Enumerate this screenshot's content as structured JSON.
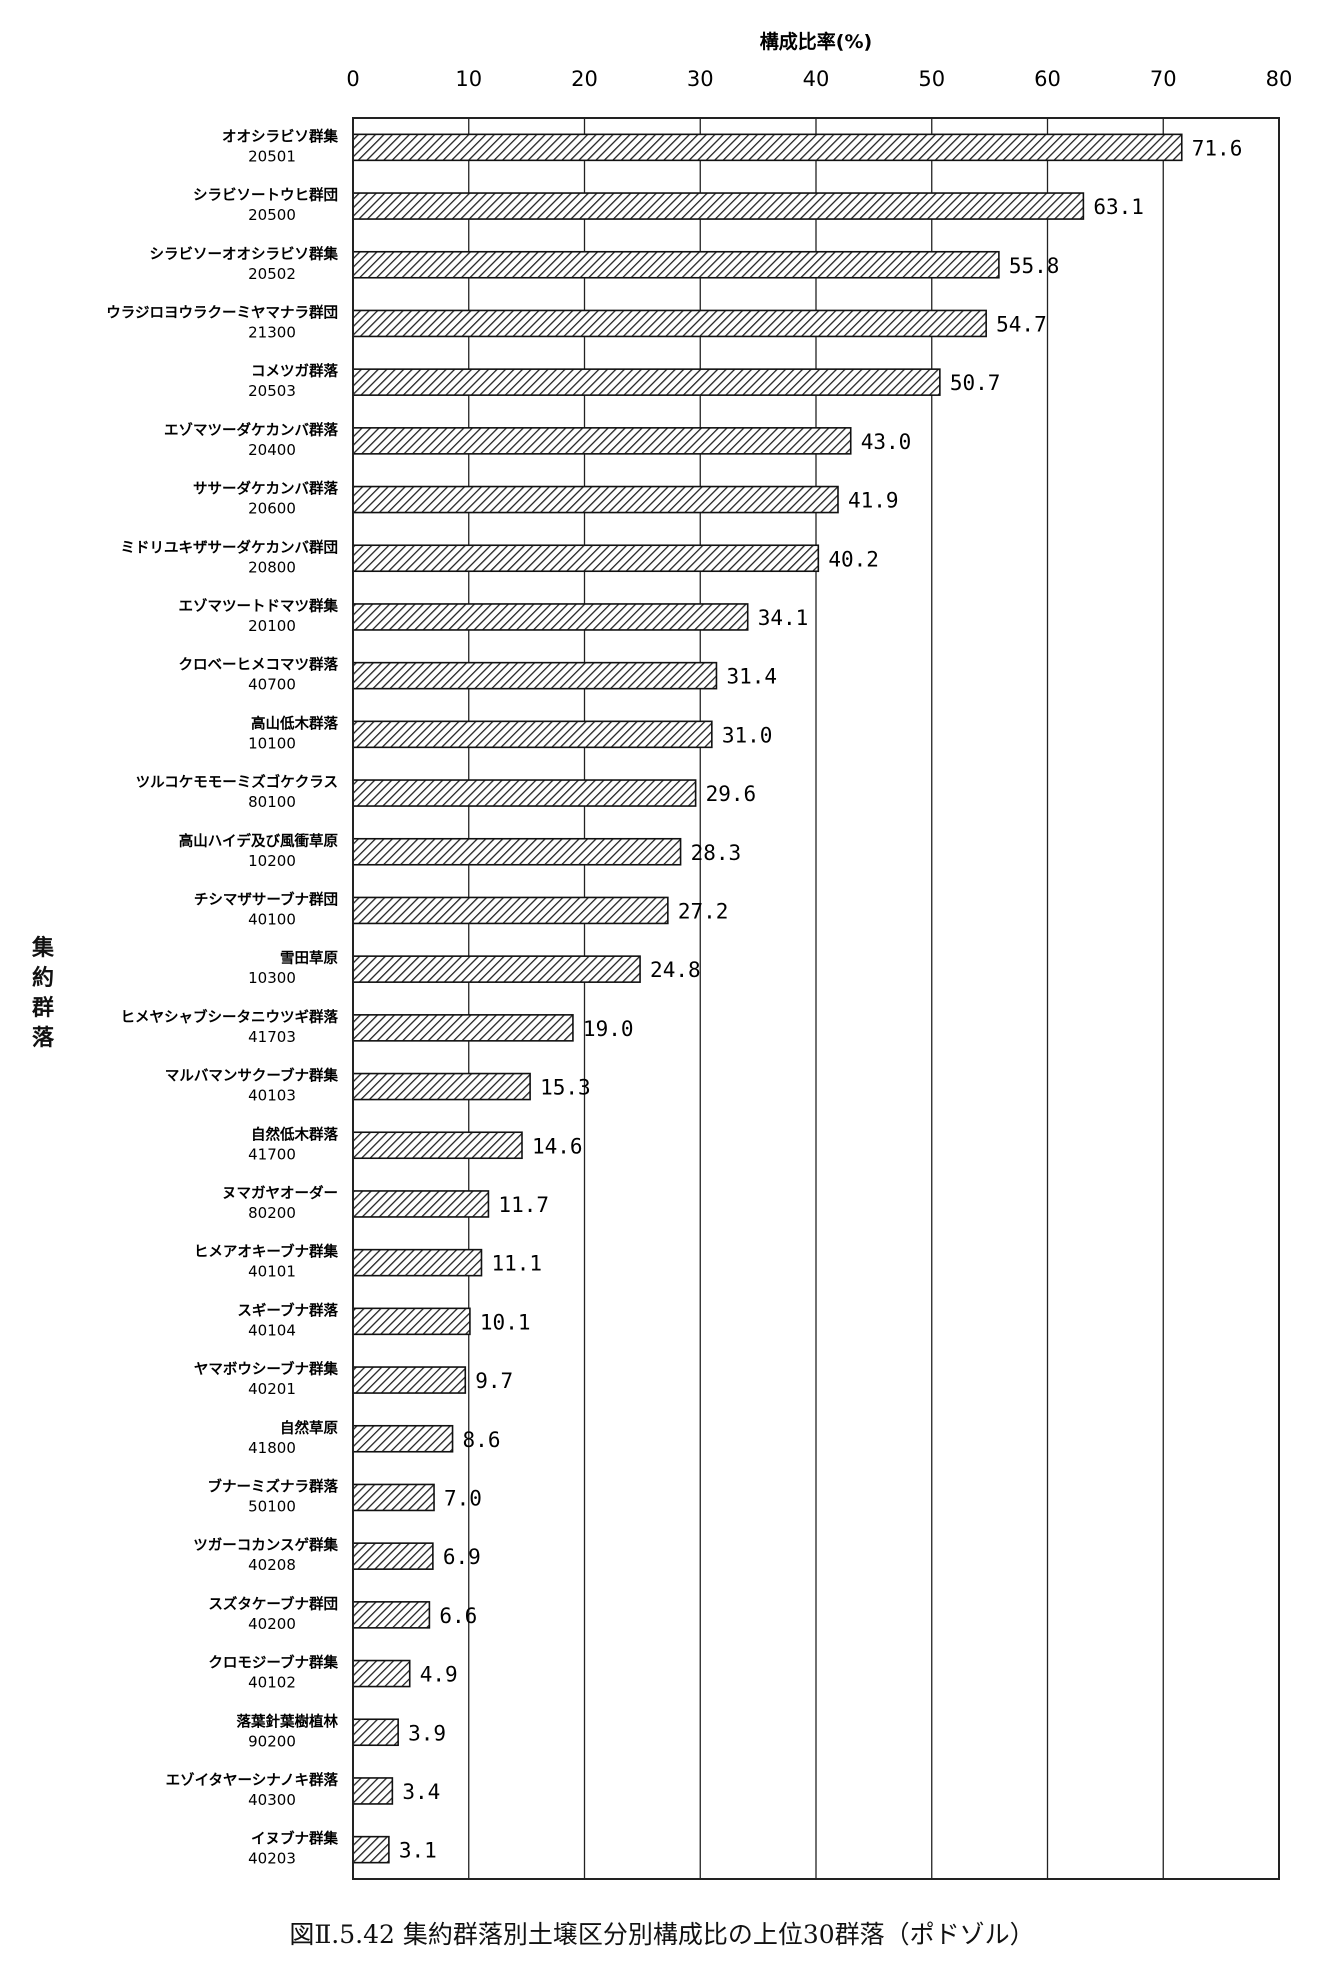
{
  "chart_data": {
    "type": "bar",
    "orientation": "horizontal",
    "title": "",
    "xlabel": "構成比率(%)",
    "ylabel": "集約群落",
    "xlim": [
      0,
      80
    ],
    "x_ticks": [
      0,
      10,
      20,
      30,
      40,
      50,
      60,
      70,
      80
    ],
    "x_axis_position": "top",
    "grid": true,
    "legend": "none",
    "bar_fill": "diagonal hatch",
    "categories": [
      {
        "name": "オオシラビソ群集",
        "code": "20501"
      },
      {
        "name": "シラビソートウヒ群団",
        "code": "20500"
      },
      {
        "name": "シラビソーオオシラビソ群集",
        "code": "20502"
      },
      {
        "name": "ウラジロヨウラクーミヤマナラ群団",
        "code": "21300"
      },
      {
        "name": "コメツガ群落",
        "code": "20503"
      },
      {
        "name": "エゾマツーダケカンバ群落",
        "code": "20400"
      },
      {
        "name": "ササーダケカンバ群落",
        "code": "20600"
      },
      {
        "name": "ミドリユキザサーダケカンバ群団",
        "code": "20800"
      },
      {
        "name": "エゾマツートドマツ群集",
        "code": "20100"
      },
      {
        "name": "クロベーヒメコマツ群落",
        "code": "40700"
      },
      {
        "name": "高山低木群落",
        "code": "10100"
      },
      {
        "name": "ツルコケモモーミズゴケクラス",
        "code": "80100"
      },
      {
        "name": "高山ハイデ及び風衝草原",
        "code": "10200"
      },
      {
        "name": "チシマザサーブナ群団",
        "code": "40100"
      },
      {
        "name": "雪田草原",
        "code": "10300"
      },
      {
        "name": "ヒメヤシャブシータニウツギ群落",
        "code": "41703"
      },
      {
        "name": "マルバマンサクーブナ群集",
        "code": "40103"
      },
      {
        "name": "自然低木群落",
        "code": "41700"
      },
      {
        "name": "ヌマガヤオーダー",
        "code": "80200"
      },
      {
        "name": "ヒメアオキーブナ群集",
        "code": "40101"
      },
      {
        "name": "スギーブナ群落",
        "code": "40104"
      },
      {
        "name": "ヤマボウシーブナ群集",
        "code": "40201"
      },
      {
        "name": "自然草原",
        "code": "41800"
      },
      {
        "name": "ブナーミズナラ群落",
        "code": "50100"
      },
      {
        "name": "ツガーコカンスゲ群集",
        "code": "40208"
      },
      {
        "name": "スズタケーブナ群団",
        "code": "40200"
      },
      {
        "name": "クロモジーブナ群集",
        "code": "40102"
      },
      {
        "name": "落葉針葉樹植林",
        "code": "90200"
      },
      {
        "name": "エゾイタヤーシナノキ群落",
        "code": "40300"
      },
      {
        "name": "イヌブナ群集",
        "code": "40203"
      }
    ],
    "values": [
      71.6,
      63.1,
      55.8,
      54.7,
      50.7,
      43.0,
      41.9,
      40.2,
      34.1,
      31.4,
      31.0,
      29.6,
      28.3,
      27.2,
      24.8,
      19.0,
      15.3,
      14.6,
      11.7,
      11.1,
      10.1,
      9.7,
      8.6,
      7.0,
      6.9,
      6.6,
      4.9,
      3.9,
      3.4,
      3.1
    ]
  },
  "caption": "図Ⅱ.5.42 集約群落別土壌区分別構成比の上位30群落（ポドゾル）",
  "colors": {
    "bar_stroke": "#111111",
    "hatch": "#222222",
    "grid": "#222222",
    "background": "#ffffff"
  }
}
